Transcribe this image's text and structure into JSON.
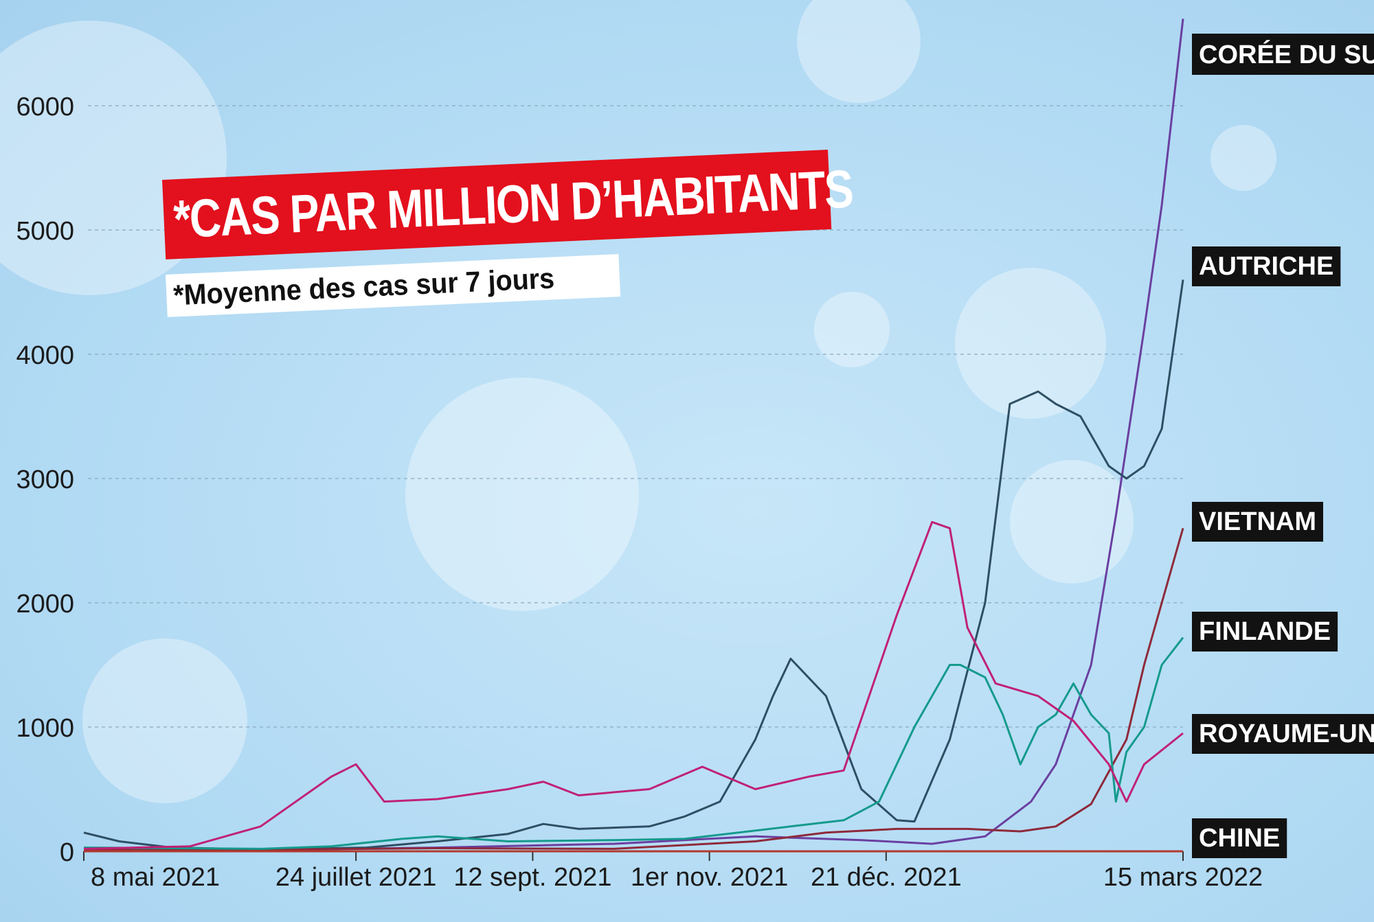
{
  "chart_data": {
    "type": "line",
    "title": "*CAS PAR MILLION D’HABITANTS",
    "subtitle": "*Moyenne des cas sur 7 jours",
    "ylim": [
      0,
      6500
    ],
    "yticks": [
      0,
      1000,
      2000,
      3000,
      4000,
      5000,
      6000
    ],
    "x_tick_labels": [
      "8 mai 2021",
      "24 juillet 2021",
      "12 sept. 2021",
      "1er nov. 2021",
      "21 déc. 2021",
      "15 mars 2022"
    ],
    "x_tick_days": [
      0,
      77,
      127,
      177,
      227,
      311
    ],
    "xlim_days": [
      0,
      311
    ],
    "grid": true,
    "colors": {
      "coree": "#6a3fa0",
      "autriche": "#2e4f63",
      "vietnam": "#8e2a3a",
      "finlande": "#159a8c",
      "royaume_uni": "#c02176",
      "chine": "#b23a2e"
    },
    "series": [
      {
        "key": "coree",
        "name": "CORÉE DU SUD",
        "color": "#6a3fa0",
        "x": [
          0,
          50,
          100,
          150,
          190,
          220,
          240,
          255,
          268,
          275,
          285,
          292,
          300,
          305,
          311
        ],
        "y": [
          20,
          10,
          30,
          60,
          120,
          90,
          60,
          120,
          400,
          700,
          1500,
          2700,
          4200,
          5200,
          6700
        ]
      },
      {
        "key": "autriche",
        "name": "AUTRICHE",
        "color": "#2e4f63",
        "x": [
          0,
          10,
          25,
          50,
          80,
          100,
          120,
          130,
          140,
          160,
          170,
          180,
          190,
          195,
          200,
          210,
          220,
          230,
          235,
          245,
          255,
          262,
          270,
          275,
          282,
          290,
          295,
          300,
          305,
          311
        ],
        "y": [
          150,
          80,
          30,
          15,
          30,
          80,
          140,
          220,
          180,
          200,
          280,
          400,
          900,
          1250,
          1550,
          1250,
          500,
          250,
          240,
          900,
          2000,
          3600,
          3700,
          3600,
          3500,
          3100,
          3000,
          3100,
          3400,
          4600
        ]
      },
      {
        "key": "vietnam",
        "name": "VIETNAM",
        "color": "#8e2a3a",
        "x": [
          0,
          60,
          100,
          150,
          190,
          210,
          230,
          250,
          265,
          275,
          285,
          295,
          300,
          305,
          311
        ],
        "y": [
          10,
          15,
          25,
          20,
          80,
          150,
          180,
          180,
          160,
          200,
          380,
          900,
          1500,
          2000,
          2600
        ]
      },
      {
        "key": "finlande",
        "name": "FINLANDE",
        "color": "#159a8c",
        "x": [
          0,
          50,
          70,
          90,
          100,
          120,
          150,
          170,
          200,
          215,
          225,
          235,
          245,
          248,
          255,
          260,
          265,
          270,
          275,
          280,
          285,
          290,
          292,
          295,
          300,
          305,
          311
        ],
        "y": [
          30,
          20,
          40,
          100,
          120,
          80,
          90,
          100,
          200,
          250,
          400,
          1000,
          1500,
          1500,
          1400,
          1100,
          700,
          1000,
          1100,
          1350,
          1100,
          950,
          400,
          800,
          1000,
          1500,
          1720
        ]
      },
      {
        "key": "royaume_uni",
        "name": "ROYAUME-UNI",
        "color": "#c02176",
        "x": [
          0,
          30,
          50,
          70,
          77,
          85,
          100,
          120,
          130,
          140,
          160,
          175,
          190,
          205,
          215,
          230,
          240,
          245,
          250,
          258,
          270,
          280,
          290,
          295,
          300,
          311
        ],
        "y": [
          20,
          40,
          200,
          600,
          700,
          400,
          420,
          500,
          560,
          450,
          500,
          680,
          500,
          600,
          650,
          1900,
          2650,
          2600,
          1800,
          1350,
          1250,
          1050,
          700,
          400,
          700,
          950
        ]
      },
      {
        "key": "chine",
        "name": "CHINE",
        "color": "#b23a2e",
        "x": [
          0,
          311
        ],
        "y": [
          0,
          0
        ]
      }
    ]
  }
}
